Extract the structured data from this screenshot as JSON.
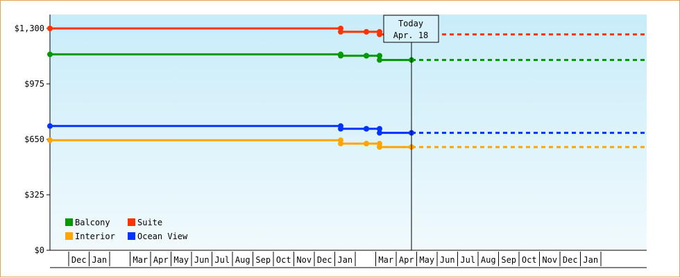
{
  "chart_data": {
    "type": "line",
    "title": "",
    "xlabel": "",
    "ylabel": "",
    "ylim": [
      0,
      1300
    ],
    "yticks": [
      "$0",
      "$325",
      "$650",
      "$975",
      "$1,300"
    ],
    "ytick_values": [
      0,
      325,
      650,
      975,
      1300
    ],
    "grid": false,
    "legend_position": "bottom-left",
    "today_label": [
      "Today",
      "Apr. 18"
    ],
    "x_months": [
      "",
      "Dec",
      "Jan",
      "",
      "Mar",
      "Apr",
      "May",
      "Jun",
      "Jul",
      "Aug",
      "Sep",
      "Oct",
      "Nov",
      "Dec",
      "Jan",
      "",
      "Mar",
      "Apr",
      "May",
      "Jun",
      "Jul",
      "Aug",
      "Sep",
      "Oct",
      "Nov",
      "Dec",
      "Jan",
      ""
    ],
    "series": [
      {
        "name": "Suite",
        "color": "#ff3300",
        "points": [
          [
            "first",
            1300
          ],
          [
            "jan-a",
            1300
          ],
          [
            "jan-b",
            1280
          ],
          [
            "feb-a",
            1280
          ],
          [
            "feb-b",
            1280
          ],
          [
            "mar-a",
            1280
          ],
          [
            "mar-b",
            1265
          ],
          [
            "today",
            1265
          ]
        ],
        "forecast": 1265
      },
      {
        "name": "Balcony",
        "color": "#009900",
        "points": [
          [
            "first",
            1148
          ],
          [
            "jan-a",
            1148
          ],
          [
            "jan-b",
            1140
          ],
          [
            "feb-a",
            1140
          ],
          [
            "feb-b",
            1140
          ],
          [
            "mar-a",
            1140
          ],
          [
            "mar-b",
            1115
          ],
          [
            "today",
            1115
          ]
        ],
        "forecast": 1115
      },
      {
        "name": "Ocean View",
        "color": "#0033ff",
        "points": [
          [
            "first",
            728
          ],
          [
            "jan-a",
            728
          ],
          [
            "jan-b",
            712
          ],
          [
            "feb-a",
            712
          ],
          [
            "feb-b",
            712
          ],
          [
            "mar-a",
            712
          ],
          [
            "mar-b",
            688
          ],
          [
            "today",
            688
          ]
        ],
        "forecast": 688
      },
      {
        "name": "Interior",
        "color": "#ffa500",
        "points": [
          [
            "first",
            645
          ],
          [
            "jan-a",
            645
          ],
          [
            "jan-b",
            625
          ],
          [
            "feb-a",
            625
          ],
          [
            "feb-b",
            625
          ],
          [
            "mar-a",
            625
          ],
          [
            "mar-b",
            605
          ],
          [
            "today",
            605
          ]
        ],
        "forecast": 605
      }
    ],
    "legend": [
      {
        "label": "Balcony",
        "color": "#009900"
      },
      {
        "label": "Suite",
        "color": "#ff3300"
      },
      {
        "label": "Interior",
        "color": "#ffa500"
      },
      {
        "label": "Ocean View",
        "color": "#0033ff"
      }
    ]
  }
}
